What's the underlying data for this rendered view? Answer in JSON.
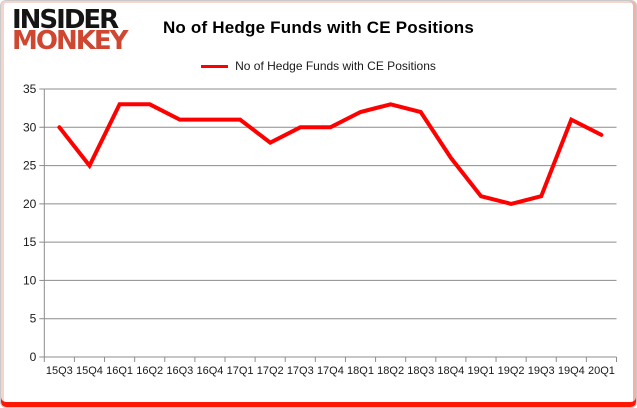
{
  "logo": {
    "line1": "INSIDER",
    "line2": "MONKEY",
    "line1_color": "#151515",
    "line2_color": "#cf4631"
  },
  "header": {
    "title": "No of Hedge Funds with CE Positions"
  },
  "legend": {
    "label": "No of Hedge Funds with CE Positions",
    "swatch_color": "#ff0000"
  },
  "chart_data": {
    "type": "line",
    "title": "No of Hedge Funds with CE Positions",
    "categories": [
      "15Q3",
      "15Q4",
      "16Q1",
      "16Q2",
      "16Q3",
      "16Q4",
      "17Q1",
      "17Q2",
      "17Q3",
      "17Q4",
      "18Q1",
      "18Q2",
      "18Q3",
      "18Q4",
      "19Q1",
      "19Q2",
      "19Q3",
      "19Q4",
      "20Q1"
    ],
    "series": [
      {
        "name": "No of Hedge Funds with CE Positions",
        "values": [
          30,
          25,
          33,
          33,
          31,
          31,
          31,
          28,
          30,
          30,
          32,
          33,
          32,
          26,
          21,
          20,
          21,
          31,
          29
        ],
        "color": "#ff0000"
      }
    ],
    "xlabel": "",
    "ylabel": "",
    "ylim": [
      0,
      35
    ],
    "yticks": [
      0,
      5,
      10,
      15,
      20,
      25,
      30,
      35
    ],
    "grid": true,
    "grid_color": "#8c8c8c",
    "axis_color": "#8c8c8c",
    "tick_label_color": "#1a1a1a",
    "legend_position": "top-center"
  }
}
